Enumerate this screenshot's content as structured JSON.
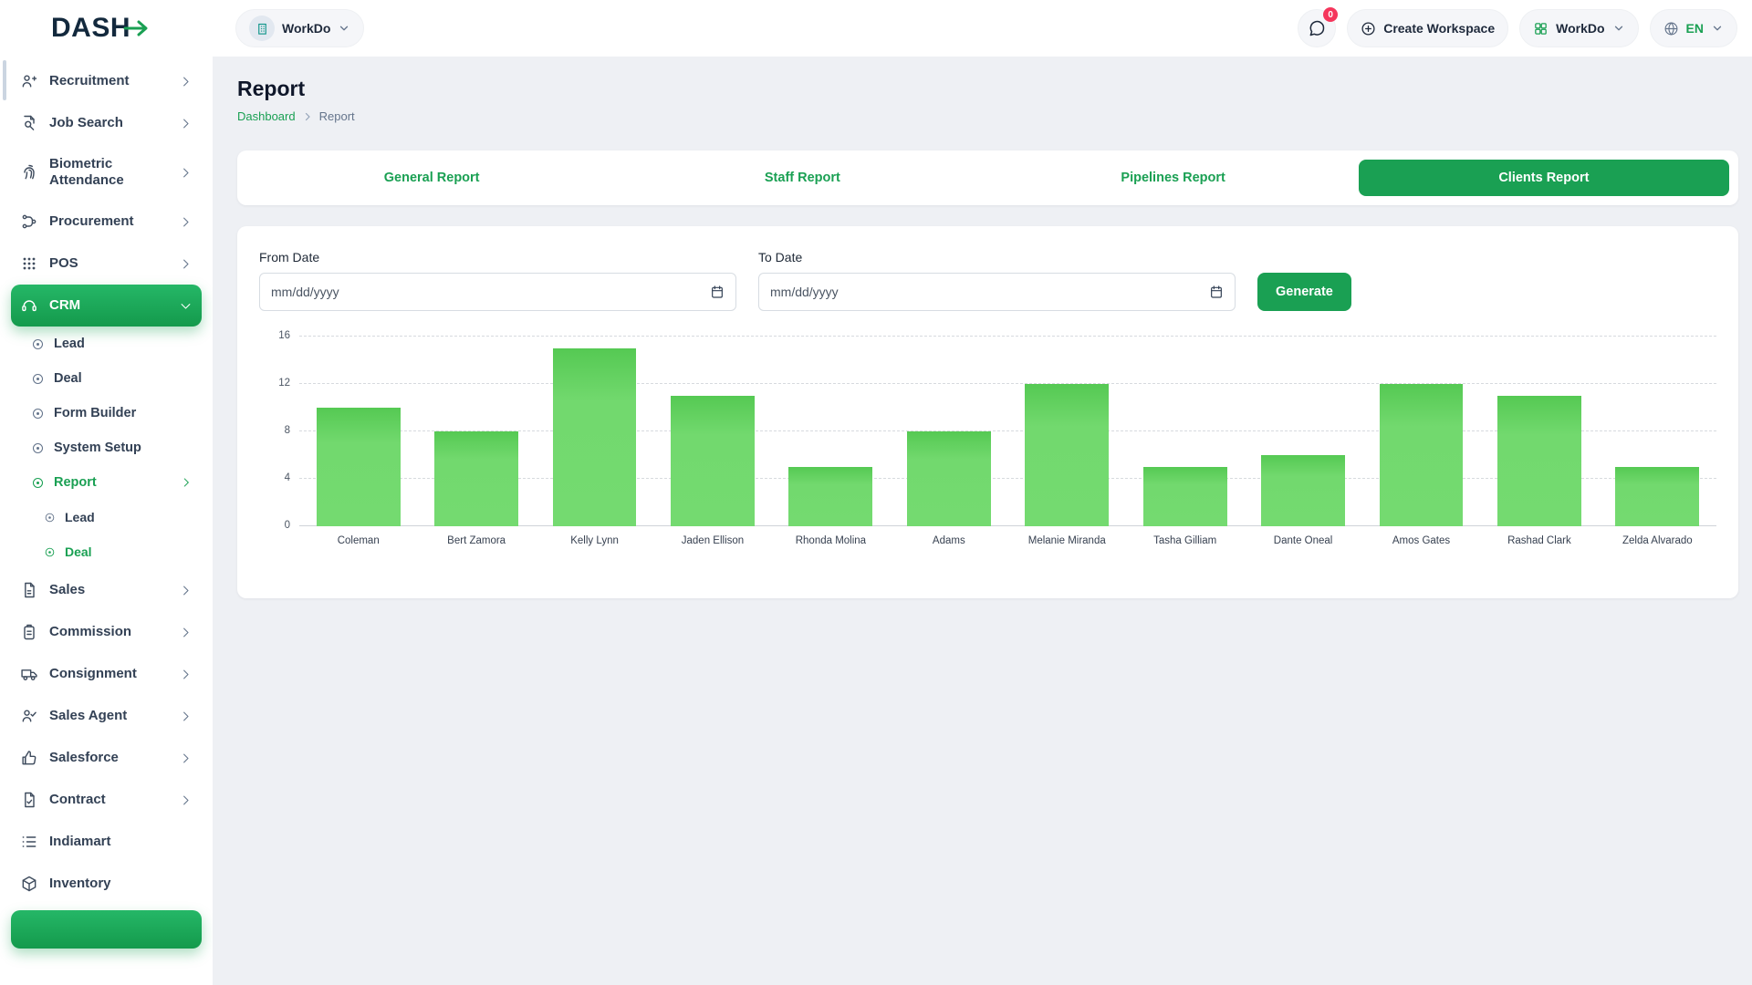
{
  "header": {
    "logo": "DASH",
    "workspace_label": "WorkDo",
    "chat_badge": "0",
    "create_workspace_label": "Create Workspace",
    "workdo_label": "WorkDo",
    "language": "EN"
  },
  "sidebar": {
    "items": [
      {
        "label": "Recruitment",
        "icon": "recruitment",
        "chevron": true
      },
      {
        "label": "Job Search",
        "icon": "job-search",
        "chevron": true
      },
      {
        "label": "Biometric Attendance",
        "icon": "biometric",
        "chevron": true
      },
      {
        "label": "Procurement",
        "icon": "procurement",
        "chevron": true
      },
      {
        "label": "POS",
        "icon": "pos",
        "chevron": true
      },
      {
        "label": "CRM",
        "icon": "crm",
        "chevron": true,
        "active": true,
        "children": [
          {
            "label": "Lead"
          },
          {
            "label": "Deal"
          },
          {
            "label": "Form Builder"
          },
          {
            "label": "System Setup"
          },
          {
            "label": "Report",
            "active": true,
            "chevron": true,
            "children": [
              {
                "label": "Lead"
              },
              {
                "label": "Deal",
                "active": true
              }
            ]
          }
        ]
      },
      {
        "label": "Sales",
        "icon": "sales",
        "chevron": true
      },
      {
        "label": "Commission",
        "icon": "commission",
        "chevron": true
      },
      {
        "label": "Consignment",
        "icon": "consignment",
        "chevron": true
      },
      {
        "label": "Sales Agent",
        "icon": "sales-agent",
        "chevron": true
      },
      {
        "label": "Salesforce",
        "icon": "salesforce",
        "chevron": true
      },
      {
        "label": "Contract",
        "icon": "contract",
        "chevron": true
      },
      {
        "label": "Indiamart",
        "icon": "indiamart",
        "chevron": false
      },
      {
        "label": "Inventory",
        "icon": "inventory",
        "chevron": false
      }
    ]
  },
  "page": {
    "title": "Report",
    "breadcrumb_home": "Dashboard",
    "breadcrumb_current": "Report"
  },
  "tabs": [
    {
      "label": "General Report",
      "active": false
    },
    {
      "label": "Staff Report",
      "active": false
    },
    {
      "label": "Pipelines Report",
      "active": false
    },
    {
      "label": "Clients Report",
      "active": true
    }
  ],
  "filters": {
    "from_label": "From Date",
    "to_label": "To Date",
    "date_placeholder": "mm/dd/yyyy",
    "generate_label": "Generate"
  },
  "chart_data": {
    "type": "bar",
    "categories": [
      "Coleman",
      "Bert Zamora",
      "Kelly Lynn",
      "Jaden Ellison",
      "Rhonda Molina",
      "Adams",
      "Melanie Miranda",
      "Tasha Gilliam",
      "Dante Oneal",
      "Amos Gates",
      "Rashad Clark",
      "Zelda Alvarado"
    ],
    "values": [
      10,
      8,
      15,
      11,
      5,
      8,
      12,
      5,
      6,
      12,
      11,
      5
    ],
    "title": "",
    "xlabel": "",
    "ylabel": "",
    "ylim": [
      0,
      16
    ],
    "yticks": [
      0,
      4,
      8,
      12,
      16
    ],
    "grid": "dashed-horizontal",
    "legend": "none",
    "bar_color": "#6fd96b"
  },
  "colors": {
    "accent": "#1aa053",
    "bar": "#6fd96b",
    "badge": "#f5365c"
  }
}
